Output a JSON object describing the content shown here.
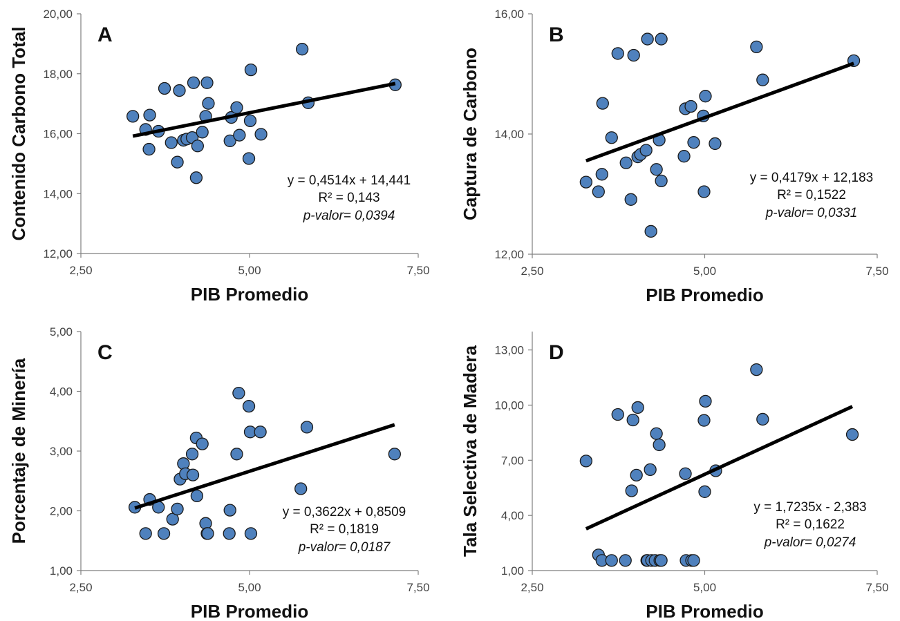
{
  "chart_data": [
    {
      "type": "scatter",
      "panel_label": "A",
      "xlabel": "PIB Promedio",
      "ylabel": "Contenido Carbono Total",
      "xlim": [
        2.5,
        7.5
      ],
      "ylim": [
        12,
        20
      ],
      "xticks": [
        "2,50",
        "5,00",
        "7,50"
      ],
      "xtick_values": [
        2.5,
        5,
        7.5
      ],
      "yticks": [
        "12,00",
        "14,00",
        "16,00",
        "18,00",
        "20,00"
      ],
      "ytick_values": [
        12,
        14,
        16,
        18,
        20
      ],
      "equation": "y = 0,4514x + 14,441",
      "r2": "R² = 0,143",
      "pvalue": "p-valor= 0,0394",
      "trend": {
        "slope": 0.4514,
        "intercept": 14.441
      },
      "x": [
        3.27,
        3.46,
        3.51,
        3.52,
        3.65,
        3.74,
        3.84,
        3.93,
        3.96,
        4.02,
        4.07,
        4.15,
        4.17,
        4.21,
        4.23,
        4.3,
        4.35,
        4.37,
        4.39,
        4.71,
        4.73,
        4.81,
        4.85,
        4.99,
        5.01,
        5.02,
        5.17,
        5.78,
        5.87,
        7.16
      ],
      "y": [
        16.58,
        16.14,
        15.48,
        16.62,
        16.08,
        17.51,
        15.7,
        15.05,
        17.44,
        15.78,
        15.82,
        15.87,
        17.7,
        14.53,
        15.59,
        16.05,
        16.58,
        17.7,
        17.01,
        15.76,
        16.54,
        16.87,
        15.95,
        15.17,
        16.43,
        18.13,
        15.98,
        18.82,
        17.03,
        17.63
      ]
    },
    {
      "type": "scatter",
      "panel_label": "B",
      "xlabel": "PIB Promedio",
      "ylabel": "Captura de Carbono",
      "xlim": [
        2.5,
        7.5
      ],
      "ylim": [
        12,
        16
      ],
      "xticks": [
        "2,50",
        "5,00",
        "7,50"
      ],
      "xtick_values": [
        2.5,
        5,
        7.5
      ],
      "yticks": [
        "12,00",
        "14,00",
        "16,00"
      ],
      "ytick_values": [
        12,
        14,
        16
      ],
      "equation": "y = 0,4179x + 12,183",
      "r2": "R² = 0,1522",
      "pvalue": "p-valor= 0,0331",
      "trend": {
        "slope": 0.4179,
        "intercept": 12.183
      },
      "x": [
        3.28,
        3.46,
        3.51,
        3.52,
        3.65,
        3.74,
        3.86,
        3.93,
        3.97,
        4.03,
        4.07,
        4.15,
        4.17,
        4.22,
        4.3,
        4.34,
        4.37,
        4.37,
        4.7,
        4.72,
        4.8,
        4.84,
        4.98,
        4.99,
        5.01,
        5.15,
        5.75,
        5.84,
        7.16
      ],
      "y": [
        13.2,
        13.04,
        13.33,
        14.51,
        13.94,
        15.34,
        13.52,
        12.91,
        15.31,
        13.62,
        13.66,
        13.73,
        15.58,
        12.38,
        13.41,
        13.9,
        13.22,
        15.58,
        13.63,
        14.42,
        14.46,
        13.86,
        14.3,
        13.04,
        14.63,
        13.84,
        15.45,
        14.9,
        15.22
      ]
    },
    {
      "type": "scatter",
      "panel_label": "C",
      "xlabel": "PIB Promedio",
      "ylabel": "Porcentaje de Minería",
      "xlim": [
        2.5,
        7.5
      ],
      "ylim": [
        1,
        5
      ],
      "xticks": [
        "2,50",
        "5,00",
        "7,50"
      ],
      "xtick_values": [
        2.5,
        5,
        7.5
      ],
      "yticks": [
        "1,00",
        "2,00",
        "3,00",
        "4,00",
        "5,00"
      ],
      "ytick_values": [
        1,
        2,
        3,
        4,
        5
      ],
      "equation": "y = 0,3622x + 0,8509",
      "r2": "R² = 0,1819",
      "pvalue": "p-valor= 0,0187",
      "trend": {
        "slope": 0.3622,
        "intercept": 0.8509
      },
      "x": [
        3.3,
        3.46,
        3.52,
        3.65,
        3.73,
        3.86,
        3.93,
        3.97,
        4.02,
        4.05,
        4.15,
        4.16,
        4.21,
        4.22,
        4.3,
        4.35,
        4.37,
        4.38,
        4.7,
        4.71,
        4.81,
        4.84,
        4.99,
        5.01,
        5.02,
        5.16,
        5.76,
        5.85,
        7.15
      ],
      "y": [
        2.06,
        1.62,
        2.19,
        2.06,
        1.62,
        1.86,
        2.03,
        2.53,
        2.79,
        2.62,
        2.95,
        2.6,
        3.22,
        2.25,
        3.12,
        1.79,
        1.62,
        1.62,
        1.62,
        2.01,
        2.95,
        3.97,
        3.75,
        3.32,
        1.62,
        3.32,
        2.37,
        3.4,
        2.95
      ]
    },
    {
      "type": "scatter",
      "panel_label": "D",
      "xlabel": "PIB Promedio",
      "ylabel": "Tala Selectiva de Madera",
      "xlim": [
        2.5,
        7.5
      ],
      "ylim": [
        1,
        14
      ],
      "xticks": [
        "2,50",
        "5,00",
        "7,50"
      ],
      "xtick_values": [
        2.5,
        5,
        7.5
      ],
      "yticks": [
        "1,00",
        "4,00",
        "7,00",
        "10,00",
        "13,00"
      ],
      "ytick_values": [
        1,
        4,
        7,
        10,
        13
      ],
      "equation": "y = 1,7235x - 2,383",
      "r2": "R² = 0,1622",
      "pvalue": "p-valor= 0,0274",
      "trend": {
        "slope": 1.7235,
        "intercept": -2.383
      },
      "x": [
        3.28,
        3.46,
        3.51,
        3.65,
        3.74,
        3.85,
        3.94,
        3.96,
        4.01,
        4.03,
        4.16,
        4.17,
        4.21,
        4.23,
        4.28,
        4.3,
        4.34,
        4.35,
        4.37,
        4.72,
        4.73,
        4.81,
        4.84,
        4.99,
        5.0,
        5.01,
        5.16,
        5.75,
        5.84,
        7.14
      ],
      "y": [
        6.96,
        1.85,
        1.55,
        1.55,
        9.49,
        1.55,
        5.34,
        9.19,
        6.19,
        9.87,
        1.55,
        1.55,
        6.49,
        1.55,
        1.55,
        8.45,
        7.84,
        1.55,
        1.55,
        6.27,
        1.55,
        1.55,
        1.55,
        9.17,
        5.29,
        10.21,
        6.43,
        11.93,
        9.23,
        8.4
      ]
    }
  ],
  "colors": {
    "marker_fill": "#4F81BD",
    "marker_stroke": "#1a1a1a",
    "trendline": "#000000",
    "axis": "#7f7f7f"
  }
}
